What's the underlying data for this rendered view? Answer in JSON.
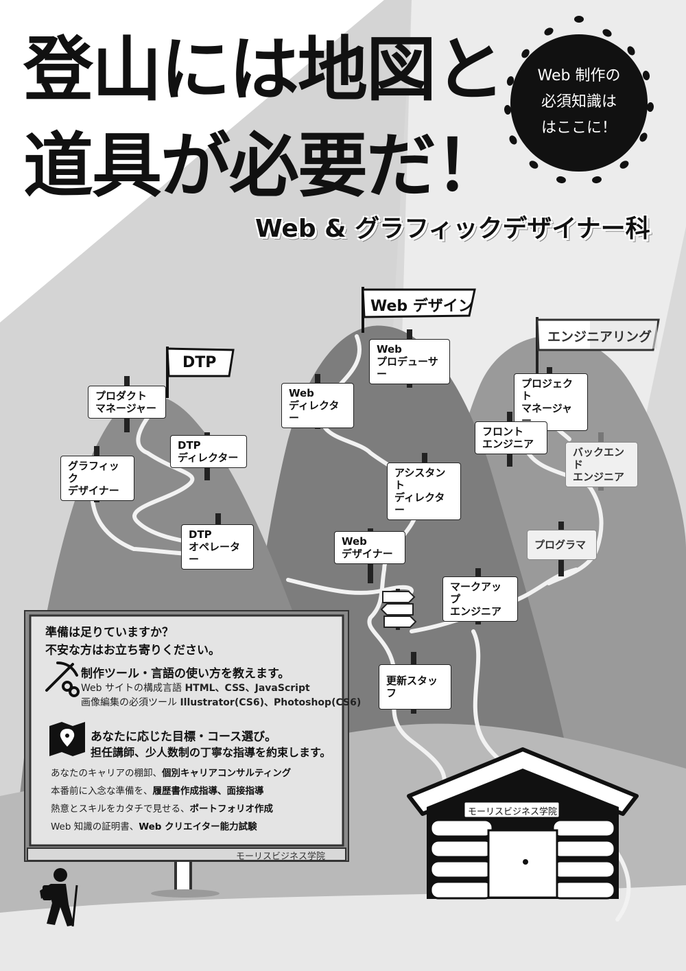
{
  "title": {
    "line1": "登山には地図と",
    "line2": "道具が必要だ！"
  },
  "subtitle": "Web & グラフィックデザイナー科",
  "sun_badge": {
    "line1": "Web 制作の",
    "line2": "必須知識は",
    "line3": "はここに！"
  },
  "flags": {
    "dtp": "DTP",
    "web_design": "Web デザイン",
    "engineering": "エンジニアリング"
  },
  "signs": {
    "product_manager": "プロダクト\nマネージャー",
    "dtp_director": "DTP\nディレクター",
    "graphic_designer": "グラフィック\nデザイナー",
    "dtp_operator": "DTP\nオペレーター",
    "web_director": "Web\nディレクター",
    "web_producer": "Web\nプロデューサー",
    "assistant_director": "アシスタント\nディレクター",
    "web_designer": "Web\nデザイナー",
    "project_manager": "プロジェクト\nマネージャー",
    "front_engineer": "フロント\nエンジニア",
    "backend_engineer": "バックエンド\nエンジニア",
    "programmer": "プログラマ",
    "markup_engineer": "マークアップ\nエンジニア",
    "update_staff": "更新スタッフ"
  },
  "board": {
    "heading_line1": "準備は足りていますか？",
    "heading_line2": "不安な方はお立ち寄りください。",
    "tools_heading": "制作ツール・言語の使い方を教えます。",
    "tools_line1_prefix": "Web サイトの構成言語 ",
    "tools_line1_bold": "HTML、CSS、JavaScript",
    "tools_line2_prefix": "画像編集の必須ツール ",
    "tools_line2_bold": "Illustrator(CS6)、Photoshop(CS6)",
    "course_line1": "あなたに応じた目標・コース選び。",
    "course_line2": "担任講師、少人数制の丁寧な指導を約束します。",
    "items": [
      {
        "prefix": "あなたのキャリアの棚卸、",
        "bold": "個別キャリアコンサルティング"
      },
      {
        "prefix": "本番前に入念な準備を、",
        "bold": "履歴書作成指導、面接指導"
      },
      {
        "prefix": "熱意とスキルをカタチで見せる、",
        "bold": "ポートフォリオ作成"
      },
      {
        "prefix": "Web 知識の証明書、",
        "bold": "Web クリエイター能力試験"
      }
    ],
    "footer": "モーリスビジネス学院"
  },
  "hut_sign": "モーリスビジネス学院",
  "icons": [
    "sun-icon",
    "pickaxe-icon",
    "map-pin-icon",
    "signpost-icon",
    "hiker-icon",
    "mountain-hut-icon"
  ],
  "colors": {
    "background": "#d9d9d9",
    "mountain": "#8a8a8a",
    "mountain_light": "#a5a5a5",
    "text": "#111111",
    "sun": "#111111"
  }
}
